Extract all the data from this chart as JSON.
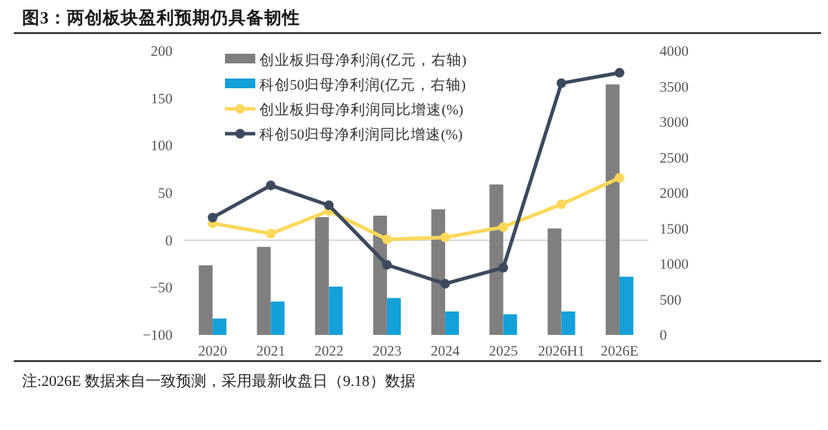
{
  "chart_data": {
    "type": "bar",
    "title": "图3：两创板块盈利预期仍具备韧性",
    "categories": [
      "2020",
      "2021",
      "2022",
      "2023",
      "2024",
      "2025",
      "2026H1",
      "2026E"
    ],
    "series": [
      {
        "name": "创业板归母净利润(亿元，右轴)",
        "axis": "y2",
        "color": "#7f7f7f",
        "values": [
          980,
          1240,
          1660,
          1680,
          1770,
          2120,
          1500,
          3530
        ]
      },
      {
        "name": "科创50归母净利润(亿元，右轴)",
        "axis": "y2",
        "color": "#14a0d8",
        "values": [
          230,
          470,
          680,
          520,
          330,
          290,
          330,
          820
        ]
      },
      {
        "name": "创业板归母净利润同比增速(%)",
        "type": "line",
        "color": "#fcd85a",
        "values": [
          18,
          7,
          31,
          1,
          3,
          14,
          38,
          66
        ]
      },
      {
        "name": "科创50归母净利润同比增速(%)",
        "type": "line",
        "color": "#3c4a5e",
        "values": [
          24,
          58,
          37,
          -26,
          -46,
          -29,
          166,
          177
        ]
      }
    ],
    "ylim": [
      -100,
      200
    ],
    "yticks": [
      -100,
      -50,
      0,
      50,
      100,
      150,
      200
    ],
    "y2lim": [
      0,
      4000
    ],
    "y2ticks": [
      0,
      500,
      1000,
      1500,
      2000,
      2500,
      3000,
      3500,
      4000
    ],
    "ref_lines": [
      {
        "axis": "y",
        "value": 0,
        "color": "#d9d9d9"
      }
    ],
    "marker": "circle",
    "legend": "top left",
    "annotations": [
      "注:2026E 数据来自一致预测，采用最新收盘日（9.18）数据"
    ]
  }
}
